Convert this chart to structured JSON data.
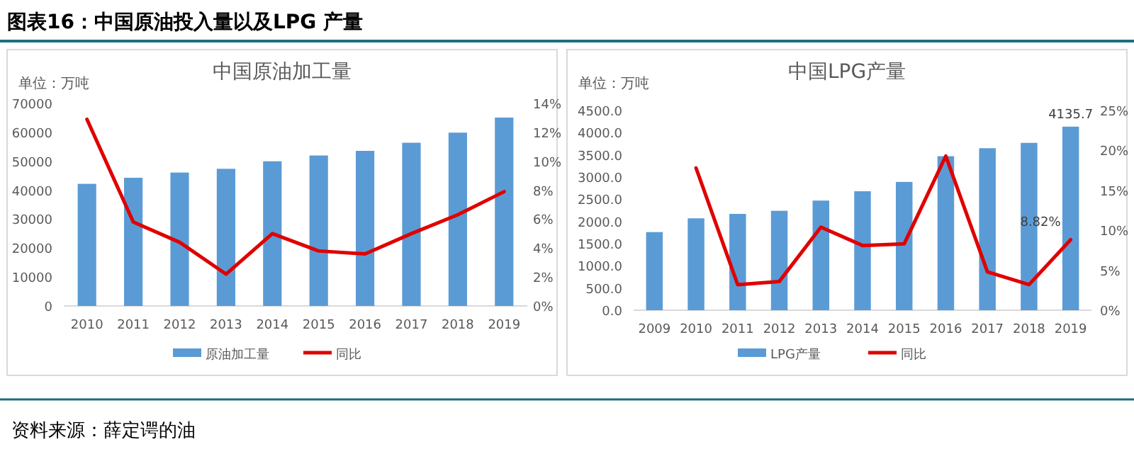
{
  "chart_data": [
    {
      "type": "bar",
      "title": "中国原油加工量",
      "ylabel": "单位：万吨",
      "legend": "bottom",
      "grid": false,
      "annotations": [
        "图表16：中国原油投入量以及LPG 产量"
      ],
      "categories": [
        "2010",
        "2011",
        "2012",
        "2013",
        "2014",
        "2015",
        "2016",
        "2017",
        "2018",
        "2019"
      ],
      "series": [
        {
          "name": "原油加工量",
          "type": "bar",
          "color": "#5b9bd5",
          "values": [
            42200,
            44300,
            46100,
            47400,
            50000,
            52000,
            53600,
            56400,
            59900,
            65100
          ]
        },
        {
          "name": "同比",
          "type": "line",
          "axis": "y2",
          "color": "#e00000",
          "values": [
            12.9,
            5.8,
            4.4,
            2.2,
            5.0,
            3.8,
            3.6,
            5.0,
            6.3,
            7.9
          ]
        }
      ],
      "ylim": [
        0,
        70000
      ],
      "yticks": [
        0,
        10000,
        20000,
        30000,
        40000,
        50000,
        60000,
        70000
      ],
      "y2lim": [
        0,
        14
      ],
      "y2ticks": [
        {
          "value": 0,
          "label": "0%"
        },
        {
          "value": 2,
          "label": "2%"
        },
        {
          "value": 4,
          "label": "4%"
        },
        {
          "value": 6,
          "label": "6%"
        },
        {
          "value": 8,
          "label": "8%"
        },
        {
          "value": 10,
          "label": "10%"
        },
        {
          "value": 12,
          "label": "12%"
        },
        {
          "value": 14,
          "label": "14%"
        }
      ]
    },
    {
      "type": "bar",
      "title": "中国LPG产量",
      "ylabel": "单位：万吨",
      "legend": "bottom",
      "grid": false,
      "annotations": [
        "资料来源：薛定谔的油"
      ],
      "categories": [
        "2009",
        "2010",
        "2011",
        "2012",
        "2013",
        "2014",
        "2015",
        "2016",
        "2017",
        "2018",
        "2019"
      ],
      "series": [
        {
          "name": "LPG产量",
          "type": "bar",
          "color": "#5b9bd5",
          "values": [
            1760,
            2070,
            2170,
            2240,
            2470,
            2680,
            2890,
            3470,
            3650,
            3770,
            4135.7
          ],
          "value_labels": [
            null,
            null,
            null,
            null,
            null,
            null,
            null,
            null,
            null,
            null,
            "4135.7"
          ]
        },
        {
          "name": "同比",
          "type": "line",
          "axis": "y2",
          "color": "#e00000",
          "values": [
            null,
            17.8,
            3.2,
            3.6,
            10.4,
            8.1,
            8.3,
            19.3,
            4.8,
            3.2,
            8.82
          ],
          "value_labels": [
            null,
            null,
            null,
            null,
            null,
            null,
            null,
            null,
            null,
            null,
            "8.82%"
          ]
        }
      ],
      "ylim": [
        0,
        4500
      ],
      "yticks": [
        {
          "value": 0,
          "label": "0.0"
        },
        {
          "value": 500,
          "label": "500.0"
        },
        {
          "value": 1000,
          "label": "1000.0"
        },
        {
          "value": 1500,
          "label": "1500.0"
        },
        {
          "value": 2000,
          "label": "2000.0"
        },
        {
          "value": 2500,
          "label": "2500.0"
        },
        {
          "value": 3000,
          "label": "3000.0"
        },
        {
          "value": 3500,
          "label": "3500.0"
        },
        {
          "value": 4000,
          "label": "4000.0"
        },
        {
          "value": 4500,
          "label": "4500.0"
        }
      ],
      "y2lim": [
        0,
        25
      ],
      "y2ticks": [
        {
          "value": 0,
          "label": "0%"
        },
        {
          "value": 5,
          "label": "5%"
        },
        {
          "value": 10,
          "label": "10%"
        },
        {
          "value": 15,
          "label": "15%"
        },
        {
          "value": 20,
          "label": "20%"
        },
        {
          "value": 25,
          "label": "25%"
        }
      ]
    }
  ]
}
